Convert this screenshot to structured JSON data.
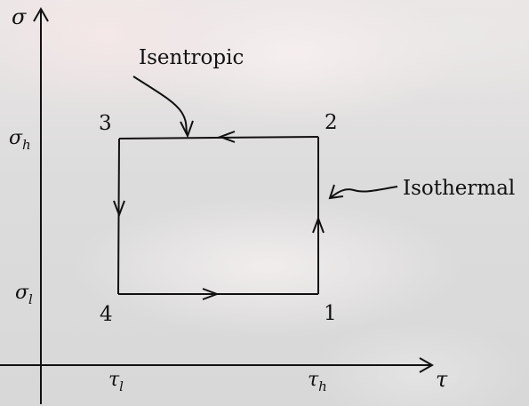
{
  "axes": {
    "y_symbol": "σ",
    "x_symbol": "τ",
    "y_ticks": [
      {
        "base": "σ",
        "sub": "h"
      },
      {
        "base": "σ",
        "sub": "l"
      }
    ],
    "x_ticks": [
      {
        "base": "τ",
        "sub": "l"
      },
      {
        "base": "τ",
        "sub": "h"
      }
    ]
  },
  "states": {
    "p1": "1",
    "p2": "2",
    "p3": "3",
    "p4": "4"
  },
  "annotations": {
    "isentropic": "Isentropic",
    "isothermal": "Isothermal"
  },
  "colors": {
    "ink": "#111111"
  }
}
